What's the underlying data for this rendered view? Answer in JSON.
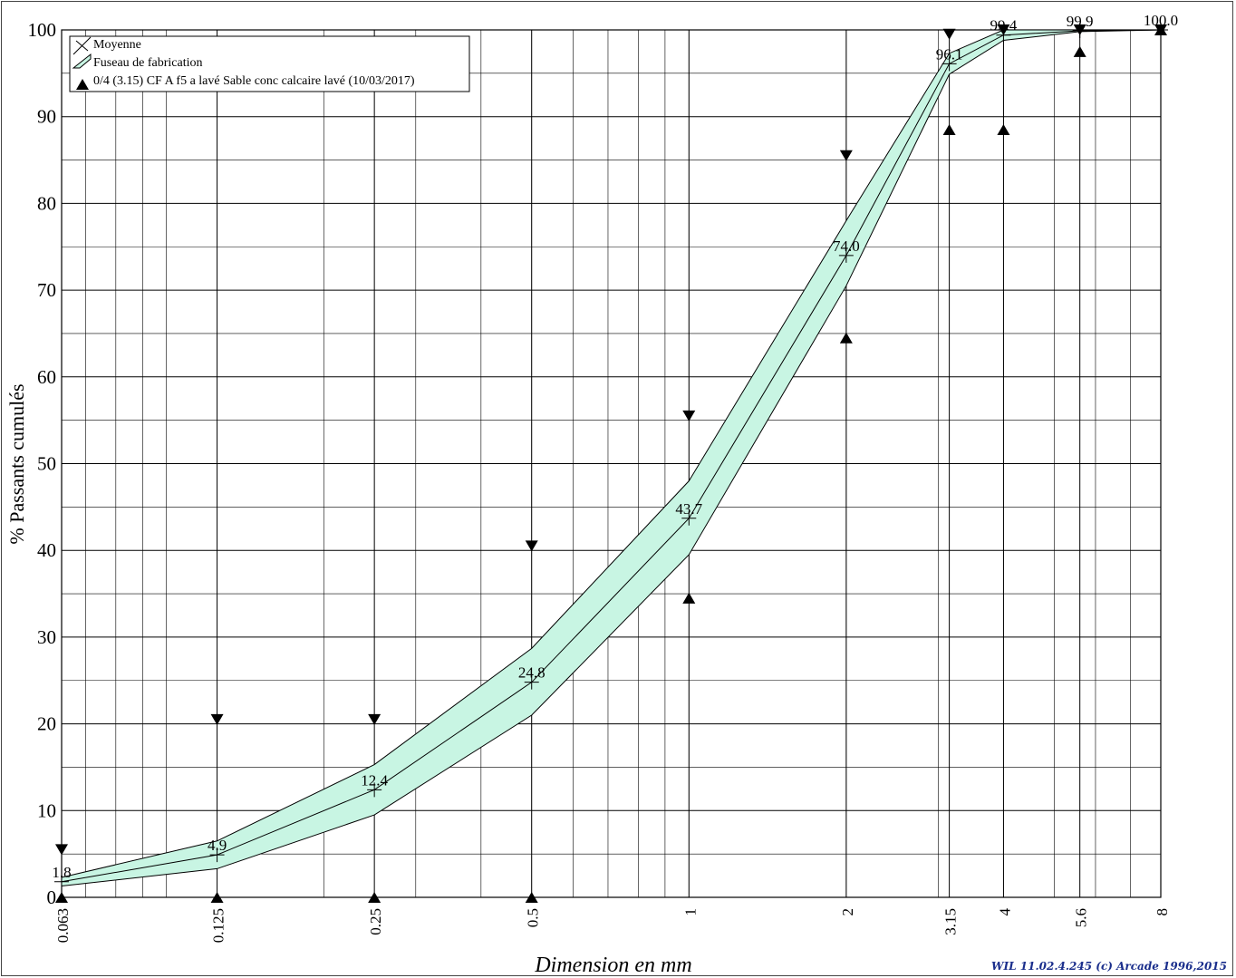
{
  "chart_data": {
    "type": "line",
    "xscale": "log",
    "xlim": [
      0.063,
      8
    ],
    "ylim": [
      0,
      100
    ],
    "xlabel": "Dimension en mm",
    "ylabel": "% Passants cumulés",
    "x_ticks": [
      "0.063",
      "0.125",
      "0.25",
      "0.5",
      "1",
      "2",
      "3.15",
      "4",
      "5.6",
      "8"
    ],
    "x_tick_values": [
      0.063,
      0.125,
      0.25,
      0.5,
      1,
      2,
      3.15,
      4,
      5.6,
      8
    ],
    "y_ticks": [
      0,
      10,
      20,
      30,
      40,
      50,
      60,
      70,
      80,
      90,
      100
    ],
    "x": [
      0.063,
      0.125,
      0.25,
      0.5,
      1,
      2,
      3.15,
      4,
      5.6,
      8
    ],
    "series": [
      {
        "name": "Moyenne",
        "values": [
          1.8,
          4.9,
          12.4,
          24.8,
          43.7,
          74.0,
          96.1,
          99.4,
          99.9,
          100.0
        ]
      }
    ],
    "data_labels": [
      "1.8",
      "4.9",
      "12.4",
      "24.8",
      "43.7",
      "74.0",
      "96.1",
      "99.4",
      "99.9",
      "100.0"
    ],
    "band": {
      "name": "Fuseau de fabrication",
      "upper": [
        2.3,
        6.5,
        15.3,
        28.7,
        48.0,
        78.0,
        97.3,
        100.0,
        100.0,
        100.0
      ],
      "lower": [
        1.3,
        3.3,
        9.5,
        21.0,
        39.5,
        70.5,
        94.9,
        98.8,
        99.8,
        100.0
      ]
    },
    "spec": {
      "name": "0/4 (3.15) CF A f5 a lavé Sable conc calcaire lavé (10/03/2017)",
      "upper": [
        5.5,
        20.5,
        20.5,
        40.5,
        55.5,
        85.5,
        99.5,
        100.0,
        100.0,
        100.0
      ],
      "lower": [
        0,
        0,
        0,
        0,
        34.5,
        64.5,
        88.5,
        88.5,
        97.5,
        100.0
      ]
    },
    "grid": true,
    "legend_position": "top-left",
    "colors": {
      "band_fill": "#c8f5e3",
      "line": "#000000"
    }
  },
  "footer": "WIL 11.02.4.245 (c) Arcade 1996,2015"
}
